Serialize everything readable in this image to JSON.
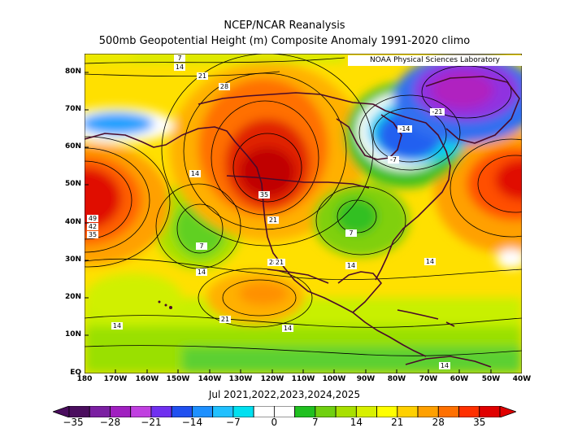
{
  "title": {
    "line1": "NCEP/NCAR Reanalysis",
    "line2": "500mb Geopotential Height (m) Composite Anomaly 1991-2020 climo"
  },
  "credit": "NOAA Physical Sciences Laboratory",
  "period": "Jul 2021,2022,2023,2024,2025",
  "lat_labels": [
    "80N",
    "70N",
    "60N",
    "50N",
    "40N",
    "30N",
    "20N",
    "10N",
    "EQ"
  ],
  "lon_labels": [
    "180",
    "170W",
    "160W",
    "150W",
    "140W",
    "130W",
    "120W",
    "110W",
    "100W",
    "90W",
    "80W",
    "70W",
    "60W",
    "50W",
    "40W"
  ],
  "colorbar": {
    "labels": [
      "-35",
      "-28",
      "-21",
      "-14",
      "-7",
      "0",
      "7",
      "14",
      "21",
      "28",
      "35"
    ],
    "colors": [
      "#4a0d5e",
      "#7b1fa2",
      "#a020c0",
      "#c040e0",
      "#7030f0",
      "#2050f0",
      "#1e90ff",
      "#20c0ff",
      "#00e0f0",
      "#ffffff",
      "#ffffff",
      "#20c020",
      "#70d010",
      "#a8e000",
      "#d8f000",
      "#ffff00",
      "#ffd000",
      "#ffa000",
      "#ff7000",
      "#ff3000",
      "#e00000"
    ]
  },
  "contour_labels": [
    "7",
    "14",
    "21",
    "28",
    "35",
    "-7",
    "-14",
    "-21",
    "49",
    "42",
    "35",
    "14",
    "21",
    "14",
    "7",
    "7",
    "14",
    "21",
    "28",
    "21",
    "14",
    "14",
    "14",
    "14"
  ],
  "map_data": {
    "type": "filled contour map",
    "variable": "500mb geopotential height anomaly (m)",
    "lat_range": [
      0,
      85
    ],
    "lon_range": [
      -180,
      -40
    ],
    "centers": [
      {
        "name": "positive",
        "lat": 45,
        "lon": -178,
        "value": 49
      },
      {
        "name": "positive",
        "lat": 53,
        "lon": -122,
        "value": 35
      },
      {
        "name": "positive",
        "lat": 48,
        "lon": -43,
        "value": 28
      },
      {
        "name": "negative",
        "lat": 62,
        "lon": -78,
        "value": -14
      },
      {
        "name": "negative",
        "lat": 74,
        "lon": -55,
        "value": -21
      },
      {
        "name": "negative",
        "lat": 65,
        "lon": -170,
        "value": -7
      }
    ]
  }
}
